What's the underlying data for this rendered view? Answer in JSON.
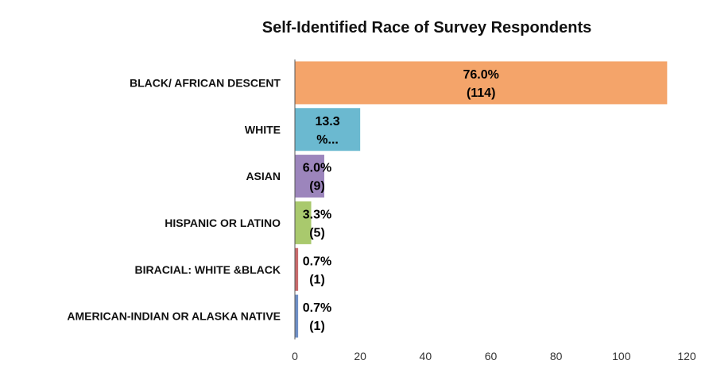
{
  "chart_data": {
    "type": "bar",
    "orientation": "horizontal",
    "title": "Self-Identified Race of Survey Respondents",
    "xlabel": "",
    "ylabel": "",
    "xlim": [
      0,
      120
    ],
    "x_ticks": [
      "0",
      "20",
      "40",
      "60",
      "80",
      "100",
      "120"
    ],
    "grid": false,
    "legend": "none",
    "categories": [
      "BLACK/ AFRICAN DESCENT",
      "WHITE",
      "ASIAN",
      "HISPANIC OR LATINO",
      "BIRACIAL: WHITE &BLACK",
      "AMERICAN-INDIAN OR ALASKA NATIVE"
    ],
    "values": [
      114,
      20,
      9,
      5,
      1,
      1
    ],
    "data_labels": [
      [
        "76.0%",
        "(114)"
      ],
      [
        "13.3",
        "%..."
      ],
      [
        "6.0%",
        "(9)"
      ],
      [
        "3.3%",
        "(5)"
      ],
      [
        "0.7%",
        "(1)"
      ],
      [
        "0.7%",
        "(1)"
      ]
    ],
    "colors": [
      "#F4A46A",
      "#6BB9D0",
      "#9C85BC",
      "#A9C96D",
      "#C86A6C",
      "#6F8FC5"
    ]
  }
}
